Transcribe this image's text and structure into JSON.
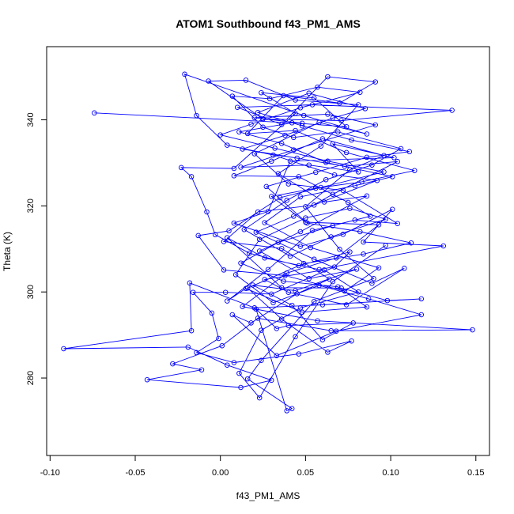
{
  "chart_data": {
    "type": "line",
    "title": "ATOM1 Southbound f43_PM1_AMS",
    "xlabel": "f43_PM1_AMS",
    "ylabel": "Theta (K)",
    "xlim": [
      -0.102,
      0.158
    ],
    "ylim": [
      262,
      357
    ],
    "x_ticks": [
      -0.1,
      -0.05,
      0.0,
      0.05,
      0.1,
      0.15
    ],
    "x_tick_labels": [
      "-0.10",
      "-0.05",
      "0.00",
      "0.05",
      "0.10",
      "0.15"
    ],
    "y_ticks": [
      280,
      300,
      320,
      340
    ],
    "y_tick_labels": [
      "280",
      "300",
      "320",
      "340"
    ],
    "grid": false,
    "legend": "none",
    "series_color": "#0000ff",
    "markers": "open-circle",
    "series": [
      {
        "values": [
          [
            -0.074,
            341.6
          ],
          [
            0.048,
            339.2
          ],
          [
            0.02,
            340.5
          ],
          [
            0.063,
            341.3
          ],
          [
            0.091,
            338.8
          ],
          [
            0.043,
            333.0
          ],
          [
            0.012,
            329.0
          ],
          [
            0.052,
            329.5
          ],
          [
            0.081,
            327.9
          ],
          [
            0.066,
            334.4
          ],
          [
            0.102,
            331.2
          ],
          [
            0.041,
            330.4
          ],
          [
            0.028,
            318.7
          ],
          [
            0.008,
            316.0
          ],
          [
            0.047,
            310.6
          ],
          [
            0.072,
            313.4
          ],
          [
            0.101,
            319.2
          ],
          [
            0.084,
            311.6
          ],
          [
            0.131,
            310.7
          ],
          [
            0.058,
            305.2
          ],
          [
            0.026,
            307.9
          ],
          [
            0.004,
            312.6
          ],
          [
            0.036,
            301.0
          ],
          [
            0.071,
            300.9
          ],
          [
            0.098,
            298.0
          ],
          [
            0.118,
            298.4
          ],
          [
            0.06,
            297.0
          ],
          [
            0.02,
            296.3
          ],
          [
            -0.018,
            302.1
          ],
          [
            -0.017,
            291.0
          ],
          [
            -0.092,
            286.8
          ],
          [
            -0.019,
            287.2
          ],
          [
            0.004,
            283.0
          ],
          [
            0.03,
            279.5
          ],
          [
            0.012,
            277.8
          ],
          [
            -0.043,
            279.6
          ],
          [
            -0.011,
            281.9
          ],
          [
            -0.028,
            283.3
          ],
          [
            0.001,
            287.5
          ],
          [
            0.022,
            293.9
          ],
          [
            0.065,
            291.0
          ],
          [
            0.148,
            291.2
          ],
          [
            0.057,
            293.3
          ],
          [
            0.013,
            296.6
          ],
          [
            0.039,
            304.4
          ],
          [
            0.068,
            307.9
          ],
          [
            0.093,
            315.6
          ],
          [
            0.05,
            316.2
          ],
          [
            0.03,
            322.2
          ],
          [
            0.056,
            324.1
          ],
          [
            0.083,
            325.6
          ],
          [
            0.114,
            328.2
          ],
          [
            0.074,
            332.4
          ],
          [
            0.044,
            337.5
          ],
          [
            0.016,
            336.8
          ],
          [
            0.037,
            345.6
          ],
          [
            0.07,
            343.9
          ],
          [
            0.091,
            348.8
          ],
          [
            0.063,
            350.0
          ],
          [
            0.036,
            338.9
          ],
          [
            0.01,
            342.9
          ],
          [
            0.054,
            343.5
          ],
          [
            0.136,
            342.2
          ],
          [
            0.071,
            339.8
          ],
          [
            0.025,
            340.2
          ],
          [
            -0.007,
            349.0
          ],
          [
            0.015,
            349.2
          ],
          [
            0.044,
            344.6
          ],
          [
            0.081,
            343.5
          ],
          [
            0.059,
            333.9
          ],
          [
            0.034,
            327.5
          ],
          [
            0.061,
            320.9
          ],
          [
            0.086,
            322.3
          ],
          [
            0.047,
            314.0
          ],
          [
            0.023,
            309.5
          ],
          [
            0.052,
            303.1
          ],
          [
            0.08,
            305.3
          ],
          [
            0.044,
            300.3
          ],
          [
            0.019,
            301.6
          ],
          [
            0.042,
            296.9
          ],
          [
            0.06,
            288.9
          ],
          [
            0.078,
            292.8
          ],
          [
            0.04,
            292.2
          ],
          [
            0.033,
            291.5
          ],
          [
            0.021,
            296.0
          ],
          [
            0.039,
            272.4
          ],
          [
            0.042,
            272.9
          ],
          [
            0.016,
            279.8
          ],
          [
            0.024,
            284.1
          ],
          [
            0.055,
            297.8
          ],
          [
            0.09,
            303.1
          ],
          [
            0.07,
            309.9
          ],
          [
            0.05,
            319.8
          ],
          [
            0.076,
            328.4
          ],
          [
            0.096,
            331.7
          ],
          [
            0.06,
            335.6
          ],
          [
            0.03,
            330.4
          ],
          [
            0.008,
            327.0
          ],
          [
            0.046,
            326.8
          ],
          [
            0.075,
            320.8
          ],
          [
            0.088,
            317.6
          ],
          [
            0.066,
            315.4
          ],
          [
            0.034,
            311.5
          ],
          [
            0.012,
            306.7
          ],
          [
            0.037,
            302.5
          ],
          [
            0.069,
            301.2
          ],
          [
            0.086,
            296.5
          ],
          [
            0.048,
            295.3
          ],
          [
            0.015,
            300.8
          ],
          [
            0.004,
            297.9
          ],
          [
            0.028,
            305.2
          ],
          [
            0.054,
            314.3
          ],
          [
            0.079,
            316.7
          ],
          [
            0.104,
            315.9
          ],
          [
            0.072,
            323.6
          ],
          [
            0.04,
            325.1
          ],
          [
            0.02,
            332.1
          ],
          [
            0.058,
            339.4
          ],
          [
            0.086,
            336.7
          ],
          [
            0.049,
            341.0
          ],
          [
            -0.021,
            350.6
          ],
          [
            -0.014,
            341.0
          ],
          [
            0.004,
            334.1
          ],
          [
            0.031,
            331.8
          ],
          [
            0.067,
            327.2
          ],
          [
            0.092,
            325.9
          ],
          [
            0.055,
            320.2
          ],
          [
            0.022,
            318.6
          ],
          [
            0.002,
            311.7
          ],
          [
            0.036,
            310.1
          ],
          [
            0.064,
            303.0
          ],
          [
            0.045,
            299.6
          ],
          [
            0.018,
            292.8
          ],
          [
            0.007,
            294.7
          ],
          [
            0.033,
            285.2
          ],
          [
            0.068,
            290.9
          ],
          [
            0.118,
            294.7
          ],
          [
            0.087,
            298.4
          ],
          [
            0.058,
            301.5
          ],
          [
            0.031,
            297.5
          ],
          [
            0.009,
            304.0
          ],
          [
            0.023,
            312.2
          ],
          [
            0.05,
            317.2
          ],
          [
            0.076,
            319.4
          ],
          [
            0.097,
            316.9
          ],
          [
            0.065,
            312.8
          ],
          [
            0.041,
            308.3
          ],
          [
            0.014,
            314.5
          ],
          [
            0.039,
            321.3
          ],
          [
            0.062,
            326.1
          ],
          [
            0.089,
            329.5
          ],
          [
            0.106,
            333.3
          ],
          [
            0.069,
            337.2
          ],
          [
            0.043,
            335.9
          ],
          [
            0.025,
            338.3
          ],
          [
            0.007,
            345.5
          ],
          [
            0.029,
            344.9
          ],
          [
            0.057,
            347.6
          ],
          [
            0.082,
            346.4
          ],
          [
            0.047,
            342.8
          ],
          [
            0.018,
            339.0
          ],
          [
            0.0,
            336.5
          ],
          [
            0.032,
            333.4
          ],
          [
            0.063,
            330.4
          ],
          [
            0.096,
            327.9
          ],
          [
            0.059,
            324.3
          ],
          [
            0.035,
            321.9
          ],
          [
            0.005,
            314.2
          ],
          [
            -0.013,
            313.1
          ],
          [
            0.002,
            305.1
          ],
          [
            0.038,
            303.8
          ],
          [
            0.073,
            300.2
          ],
          [
            0.093,
            305.6
          ],
          [
            0.053,
            310.3
          ],
          [
            0.026,
            316.1
          ],
          [
            0.047,
            322.1
          ],
          [
            0.079,
            324.7
          ],
          [
            0.101,
            326.8
          ],
          [
            0.062,
            330.1
          ],
          [
            0.036,
            334.5
          ],
          [
            0.011,
            337.2
          ],
          [
            0.042,
            339.3
          ],
          [
            0.074,
            338.4
          ],
          [
            0.055,
            345.1
          ],
          [
            0.024,
            346.3
          ],
          [
            0.044,
            341.5
          ],
          [
            0.008,
            328.7
          ],
          [
            -0.023,
            328.9
          ],
          [
            -0.017,
            326.8
          ],
          [
            -0.008,
            318.6
          ],
          [
            -0.003,
            313.3
          ],
          [
            0.017,
            309.0
          ],
          [
            0.046,
            306.1
          ],
          [
            0.076,
            309.3
          ],
          [
            0.067,
            305.8
          ],
          [
            0.03,
            299.5
          ],
          [
            0.003,
            299.9
          ],
          [
            -0.016,
            299.9
          ],
          [
            -0.005,
            295.1
          ],
          [
            -0.001,
            289.2
          ],
          [
            -0.014,
            285.9
          ],
          [
            0.008,
            283.6
          ],
          [
            0.046,
            285.6
          ],
          [
            0.077,
            288.6
          ],
          [
            0.063,
            286.0
          ],
          [
            0.036,
            293.7
          ],
          [
            0.016,
            300.9
          ],
          [
            0.049,
            306.6
          ],
          [
            0.084,
            308.8
          ],
          [
            0.112,
            311.4
          ],
          [
            0.082,
            314.0
          ],
          [
            0.051,
            316.0
          ],
          [
            0.027,
            324.5
          ],
          [
            0.056,
            327.8
          ],
          [
            0.086,
            331.3
          ],
          [
            0.111,
            332.6
          ],
          [
            0.077,
            335.3
          ],
          [
            0.048,
            338.6
          ],
          [
            0.022,
            341.7
          ],
          [
            0.052,
            346.2
          ],
          [
            0.085,
            342.6
          ],
          [
            0.066,
            340.4
          ],
          [
            0.038,
            336.4
          ],
          [
            0.013,
            333.2
          ],
          [
            0.045,
            331.1
          ],
          [
            0.073,
            329.2
          ],
          [
            0.104,
            330.3
          ],
          [
            0.066,
            322.7
          ],
          [
            0.043,
            317.6
          ],
          [
            0.021,
            313.9
          ],
          [
            0.055,
            307.6
          ],
          [
            0.089,
            302.0
          ],
          [
            0.108,
            305.5
          ],
          [
            0.074,
            297.0
          ],
          [
            0.04,
            299.9
          ],
          [
            0.026,
            302.9
          ],
          [
            0.061,
            305.1
          ],
          [
            0.081,
            300.0
          ],
          [
            0.047,
            296.3
          ],
          [
            0.024,
            291.1
          ],
          [
            0.011,
            281.1
          ],
          [
            0.023,
            275.4
          ],
          [
            0.044,
            289.6
          ],
          [
            0.066,
            302.4
          ],
          [
            0.097,
            310.8
          ]
        ]
      }
    ]
  }
}
